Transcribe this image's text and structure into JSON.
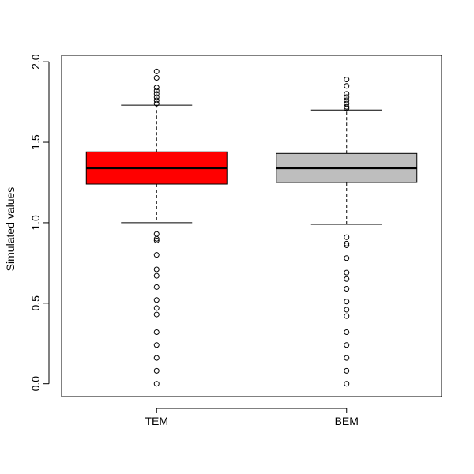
{
  "chart_data": {
    "type": "boxplot",
    "title": "",
    "xlabel": "",
    "ylabel": "Simulated values",
    "ylim": [
      -0.08,
      2.04
    ],
    "yticks": [
      0.0,
      0.5,
      1.0,
      1.5,
      2.0
    ],
    "ytick_labels": [
      "0.0",
      "0.5",
      "1.0",
      "1.5",
      "2.0"
    ],
    "grid": false,
    "legend": "none",
    "categories": [
      "TEM",
      "BEM"
    ],
    "boxes": [
      {
        "name": "TEM",
        "color": "#ff0000",
        "whisker_low": 1.0,
        "q1": 1.24,
        "median": 1.34,
        "q3": 1.44,
        "whisker_high": 1.73,
        "outliers": [
          1.94,
          1.9,
          1.84,
          1.82,
          1.8,
          1.78,
          1.76,
          1.74,
          0.93,
          0.9,
          0.89,
          0.8,
          0.71,
          0.67,
          0.6,
          0.52,
          0.47,
          0.43,
          0.32,
          0.24,
          0.16,
          0.08,
          0.0
        ]
      },
      {
        "name": "BEM",
        "color": "#bebebe",
        "whisker_low": 0.99,
        "q1": 1.25,
        "median": 1.34,
        "q3": 1.43,
        "whisker_high": 1.7,
        "outliers": [
          1.89,
          1.85,
          1.8,
          1.78,
          1.76,
          1.74,
          1.72,
          1.71,
          0.91,
          0.87,
          0.86,
          0.78,
          0.69,
          0.65,
          0.59,
          0.51,
          0.46,
          0.42,
          0.32,
          0.24,
          0.16,
          0.08,
          0.0
        ]
      }
    ]
  }
}
